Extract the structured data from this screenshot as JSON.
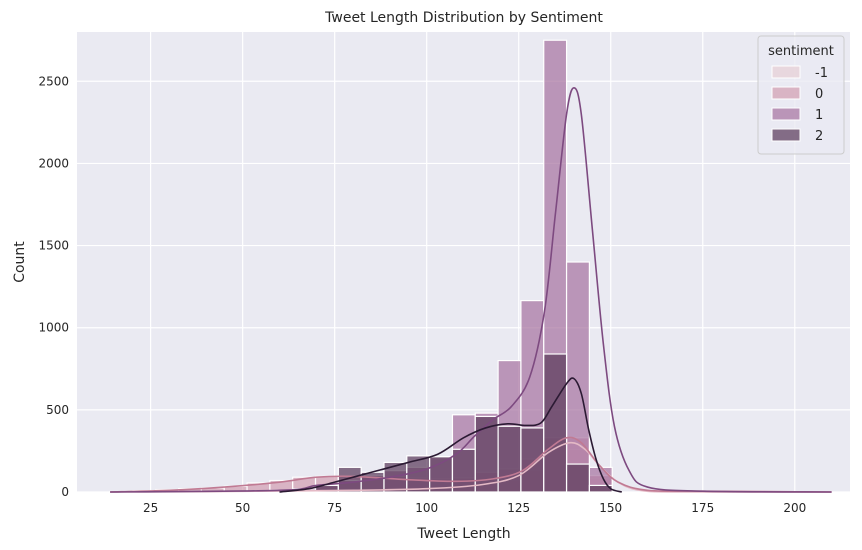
{
  "chart_data": {
    "type": "histogram",
    "title": "Tweet Length Distribution by Sentiment",
    "xlabel": "Tweet Length",
    "ylabel": "Count",
    "xlim": [
      5,
      215
    ],
    "ylim": [
      0,
      2800
    ],
    "xticks": [
      25,
      50,
      75,
      100,
      125,
      150,
      175,
      200
    ],
    "yticks": [
      0,
      500,
      1000,
      1500,
      2000,
      2500
    ],
    "grid": true,
    "legend": {
      "title": "sentiment",
      "position": "top-right"
    },
    "bins": [
      [
        14,
        20.2
      ],
      [
        20.2,
        26.4
      ],
      [
        26.4,
        32.6
      ],
      [
        32.6,
        38.8
      ],
      [
        38.8,
        45
      ],
      [
        45,
        51.2
      ],
      [
        51.2,
        57.4
      ],
      [
        57.4,
        63.6
      ],
      [
        63.6,
        69.8
      ],
      [
        69.8,
        76
      ],
      [
        76,
        82.2
      ],
      [
        82.2,
        88.4
      ],
      [
        88.4,
        94.6
      ],
      [
        94.6,
        100.8
      ],
      [
        100.8,
        107
      ],
      [
        107,
        113.2
      ],
      [
        113.2,
        119.4
      ],
      [
        119.4,
        125.6
      ],
      [
        125.6,
        131.8
      ],
      [
        131.8,
        138
      ],
      [
        138,
        144.2
      ],
      [
        144.2,
        150.4
      ],
      [
        150.4,
        156.6
      ]
    ],
    "series": [
      {
        "name": "-1",
        "color": "#e8d0d6",
        "values": [
          0,
          0,
          0,
          2,
          3,
          5,
          8,
          10,
          12,
          15,
          18,
          20,
          25,
          30,
          35,
          40,
          50,
          70,
          130,
          320,
          260,
          80,
          0
        ],
        "kde": [
          [
            14,
            0
          ],
          [
            40,
            2
          ],
          [
            60,
            6
          ],
          [
            80,
            10
          ],
          [
            100,
            20
          ],
          [
            115,
            45
          ],
          [
            125,
            100
          ],
          [
            133,
            240
          ],
          [
            139,
            300
          ],
          [
            143,
            260
          ],
          [
            147,
            160
          ],
          [
            152,
            60
          ],
          [
            158,
            10
          ],
          [
            170,
            0
          ],
          [
            210,
            0
          ]
        ]
      },
      {
        "name": "0",
        "color": "#d29fb1",
        "values": [
          3,
          8,
          15,
          20,
          25,
          35,
          55,
          70,
          90,
          95,
          100,
          95,
          95,
          85,
          80,
          85,
          120,
          140,
          200,
          330,
          330,
          100,
          0
        ],
        "kde": [
          [
            14,
            0
          ],
          [
            30,
            10
          ],
          [
            45,
            30
          ],
          [
            60,
            60
          ],
          [
            70,
            90
          ],
          [
            80,
            95
          ],
          [
            95,
            75
          ],
          [
            108,
            65
          ],
          [
            118,
            80
          ],
          [
            126,
            130
          ],
          [
            133,
            260
          ],
          [
            138,
            330
          ],
          [
            142,
            300
          ],
          [
            147,
            160
          ],
          [
            152,
            60
          ],
          [
            160,
            10
          ],
          [
            175,
            5
          ],
          [
            210,
            0
          ]
        ]
      },
      {
        "name": "1",
        "color": "#a874a1",
        "values": [
          0,
          0,
          0,
          0,
          0,
          2,
          5,
          10,
          20,
          40,
          70,
          100,
          130,
          150,
          210,
          470,
          480,
          800,
          1165,
          2750,
          1400,
          150,
          0
        ],
        "kde": [
          [
            14,
            0
          ],
          [
            60,
            10
          ],
          [
            70,
            40
          ],
          [
            80,
            60
          ],
          [
            90,
            90
          ],
          [
            100,
            140
          ],
          [
            108,
            230
          ],
          [
            113,
            340
          ],
          [
            118,
            440
          ],
          [
            123,
            520
          ],
          [
            128,
            700
          ],
          [
            132,
            1100
          ],
          [
            135,
            1700
          ],
          [
            138,
            2300
          ],
          [
            140,
            2460
          ],
          [
            142,
            2300
          ],
          [
            145,
            1600
          ],
          [
            148,
            900
          ],
          [
            151,
            400
          ],
          [
            155,
            130
          ],
          [
            160,
            30
          ],
          [
            175,
            5
          ],
          [
            210,
            0
          ]
        ]
      },
      {
        "name": "2",
        "color": "#5c3b5c",
        "values": [
          0,
          0,
          0,
          0,
          0,
          0,
          0,
          3,
          10,
          40,
          150,
          120,
          180,
          220,
          215,
          260,
          460,
          400,
          390,
          840,
          170,
          40,
          0
        ],
        "kde": [
          [
            60,
            0
          ],
          [
            68,
            20
          ],
          [
            75,
            60
          ],
          [
            85,
            120
          ],
          [
            95,
            180
          ],
          [
            103,
            230
          ],
          [
            110,
            330
          ],
          [
            116,
            390
          ],
          [
            122,
            415
          ],
          [
            127,
            405
          ],
          [
            131,
            420
          ],
          [
            134,
            520
          ],
          [
            138,
            660
          ],
          [
            140,
            690
          ],
          [
            142,
            600
          ],
          [
            144,
            380
          ],
          [
            146,
            200
          ],
          [
            148,
            80
          ],
          [
            150,
            20
          ],
          [
            153,
            0
          ]
        ]
      }
    ]
  }
}
